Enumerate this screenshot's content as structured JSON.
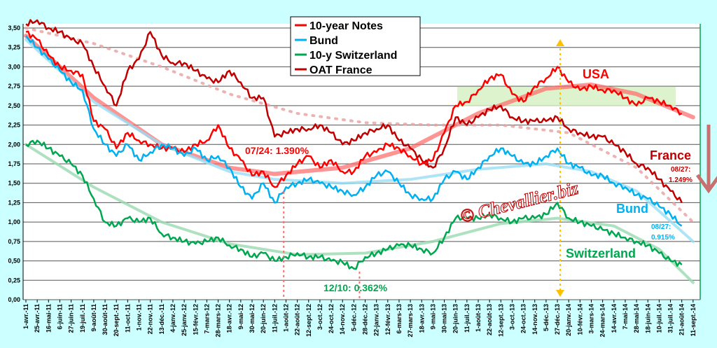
{
  "chart_data": {
    "type": "line",
    "title": "",
    "xlabel": "",
    "ylabel": "",
    "ylim": [
      0,
      3.5
    ],
    "yticks": [
      "0,00",
      "0,25",
      "0,50",
      "0,75",
      "1,00",
      "1,25",
      "1,50",
      "1,75",
      "2,00",
      "2,25",
      "2,50",
      "2,75",
      "3,00",
      "3,25",
      "3,50"
    ],
    "grid": true,
    "legend_position": "top-center",
    "categories": [
      "1-avr.-11",
      "25-avr.-11",
      "16-mai-11",
      "6-juin-11",
      "27-juin-11",
      "19-juil.-11",
      "9-août-11",
      "30-août-11",
      "20-sept.-11",
      "11-oct.-11",
      "1-nov.-11",
      "22-nov.-11",
      "13-déc.-11",
      "4-janv.-12",
      "25-janv.-12",
      "15-févr.-12",
      "7-mars-12",
      "28-mars-12",
      "18-avr.-12",
      "9-mai-12",
      "30-mai-12",
      "20-juin-12",
      "11-juil.-12",
      "1-août-12",
      "22-août-12",
      "12-sept.-12",
      "3-oct.-12",
      "24-oct.-12",
      "14-nov.-12",
      "5-déc.-12",
      "28-déc.-12",
      "22-janv.-13",
      "12-févr.-13",
      "6-mars-13",
      "27-mars-13",
      "18-avr.-13",
      "9-mai-13",
      "30-mai-13",
      "20-juin-13",
      "11-juil.-13",
      "1-août-13",
      "22-août-13",
      "12-sept.-13",
      "3-oct.-13",
      "24-oct.-13",
      "14-nov.-13",
      "5-déc.-13",
      "27-déc.-13",
      "20-janv.-14",
      "10-févr.-14",
      "3-mars-14",
      "24-mars-14",
      "14-avr.-14",
      "7-mai-14",
      "28-mai-14",
      "18-juin-14",
      "10-juil.-14",
      "31-juil.-14",
      "21-août-14",
      "11-sept.-14"
    ],
    "series": [
      {
        "name": "10-year Notes",
        "color": "#ff0000",
        "values": [
          3.45,
          3.35,
          3.15,
          3.0,
          2.95,
          2.9,
          2.3,
          2.2,
          1.95,
          2.15,
          2.05,
          2.0,
          1.95,
          1.95,
          1.9,
          2.0,
          2.05,
          2.25,
          1.95,
          1.8,
          1.6,
          1.65,
          1.45,
          1.6,
          1.75,
          1.85,
          1.7,
          1.8,
          1.65,
          1.65,
          1.85,
          1.9,
          2.0,
          1.95,
          1.85,
          1.75,
          1.8,
          2.15,
          2.5,
          2.55,
          2.7,
          2.85,
          2.9,
          2.65,
          2.55,
          2.75,
          2.85,
          3.0,
          2.8,
          2.7,
          2.75,
          2.7,
          2.7,
          2.6,
          2.5,
          2.6,
          2.55,
          2.5,
          2.4,
          null
        ]
      },
      {
        "name": "Bund",
        "color": "#00b0f0",
        "values": [
          3.4,
          3.25,
          3.1,
          2.95,
          2.8,
          2.7,
          2.2,
          2.0,
          1.85,
          2.0,
          1.8,
          1.9,
          2.0,
          1.95,
          1.85,
          1.95,
          1.8,
          1.85,
          1.7,
          1.45,
          1.3,
          1.5,
          1.25,
          1.45,
          1.5,
          1.55,
          1.5,
          1.45,
          1.4,
          1.35,
          1.45,
          1.6,
          1.65,
          1.5,
          1.35,
          1.3,
          1.3,
          1.55,
          1.65,
          1.55,
          1.7,
          1.85,
          1.95,
          1.85,
          1.75,
          1.75,
          1.85,
          1.95,
          1.75,
          1.7,
          1.6,
          1.6,
          1.5,
          1.45,
          1.35,
          1.3,
          1.2,
          1.1,
          0.95,
          null
        ]
      },
      {
        "name": "10-y Switzerland",
        "color": "#00a650",
        "values": [
          2.0,
          2.05,
          1.95,
          1.85,
          1.75,
          1.6,
          1.3,
          1.0,
          0.95,
          1.05,
          1.0,
          1.05,
          0.85,
          0.8,
          0.75,
          0.72,
          0.75,
          0.8,
          0.7,
          0.65,
          0.55,
          0.6,
          0.5,
          0.55,
          0.6,
          0.55,
          0.55,
          0.5,
          0.48,
          0.4,
          0.55,
          0.6,
          0.65,
          0.7,
          0.7,
          0.65,
          0.6,
          0.8,
          1.05,
          1.05,
          1.05,
          1.1,
          1.05,
          1.0,
          1.05,
          1.05,
          1.1,
          1.25,
          1.05,
          1.0,
          0.95,
          0.9,
          0.85,
          0.8,
          0.75,
          0.7,
          0.6,
          0.5,
          0.45,
          null
        ]
      },
      {
        "name": "OAT France",
        "color": "#c00000",
        "values": [
          3.55,
          3.6,
          3.5,
          3.45,
          3.35,
          3.3,
          3.0,
          2.75,
          2.5,
          2.95,
          3.1,
          3.45,
          3.15,
          3.05,
          3.05,
          2.95,
          2.85,
          2.8,
          2.95,
          2.8,
          2.6,
          2.6,
          2.1,
          2.15,
          2.2,
          2.2,
          2.25,
          2.15,
          2.0,
          2.05,
          2.15,
          2.2,
          2.25,
          2.05,
          1.95,
          1.8,
          1.7,
          1.95,
          2.35,
          2.25,
          2.35,
          2.45,
          2.5,
          2.35,
          2.3,
          2.3,
          2.3,
          2.35,
          2.2,
          2.15,
          2.1,
          2.1,
          2.0,
          1.9,
          1.75,
          1.7,
          1.55,
          1.4,
          1.25,
          null
        ]
      }
    ],
    "trends": [
      {
        "name": "USA trend",
        "color": "#ff6666",
        "x": [
          0,
          6,
          12,
          18,
          22,
          28,
          34,
          40,
          46,
          50,
          54,
          59
        ],
        "values": [
          3.4,
          2.6,
          2.0,
          1.7,
          1.62,
          1.7,
          1.95,
          2.4,
          2.72,
          2.77,
          2.65,
          2.35
        ]
      },
      {
        "name": "France trend",
        "color": "#e8a0a0",
        "x": [
          0,
          6,
          12,
          18,
          24,
          30,
          36,
          42,
          48,
          54,
          59
        ],
        "values": [
          3.5,
          3.3,
          3.0,
          2.65,
          2.4,
          2.28,
          2.25,
          2.25,
          2.15,
          1.7,
          1.0
        ]
      },
      {
        "name": "Bund trend",
        "color": "#99ddf5",
        "x": [
          0,
          6,
          12,
          18,
          22,
          28,
          34,
          40,
          46,
          50,
          54,
          59
        ],
        "values": [
          3.35,
          2.55,
          2.0,
          1.65,
          1.55,
          1.5,
          1.55,
          1.68,
          1.75,
          1.65,
          1.4,
          0.75
        ]
      },
      {
        "name": "Switzerland trend",
        "color": "#99d9b0",
        "x": [
          0,
          6,
          12,
          18,
          24,
          30,
          36,
          42,
          47,
          52,
          56,
          59
        ],
        "values": [
          2.0,
          1.45,
          1.0,
          0.72,
          0.58,
          0.6,
          0.75,
          0.98,
          1.05,
          0.95,
          0.65,
          0.22
        ]
      }
    ],
    "annotations": {
      "usa": "USA",
      "france": "France",
      "bund": "Bund",
      "switzerland": "Switzerland",
      "us_low": "07/24: 1.390%",
      "ch_low": "12/10: 0.362%",
      "fr_last_date": "08/27:",
      "fr_last_val": "1.249%",
      "bund_last_date": "08/27:",
      "bund_last_val": "0.915%",
      "watermark": "© Chevallier.biz"
    }
  }
}
